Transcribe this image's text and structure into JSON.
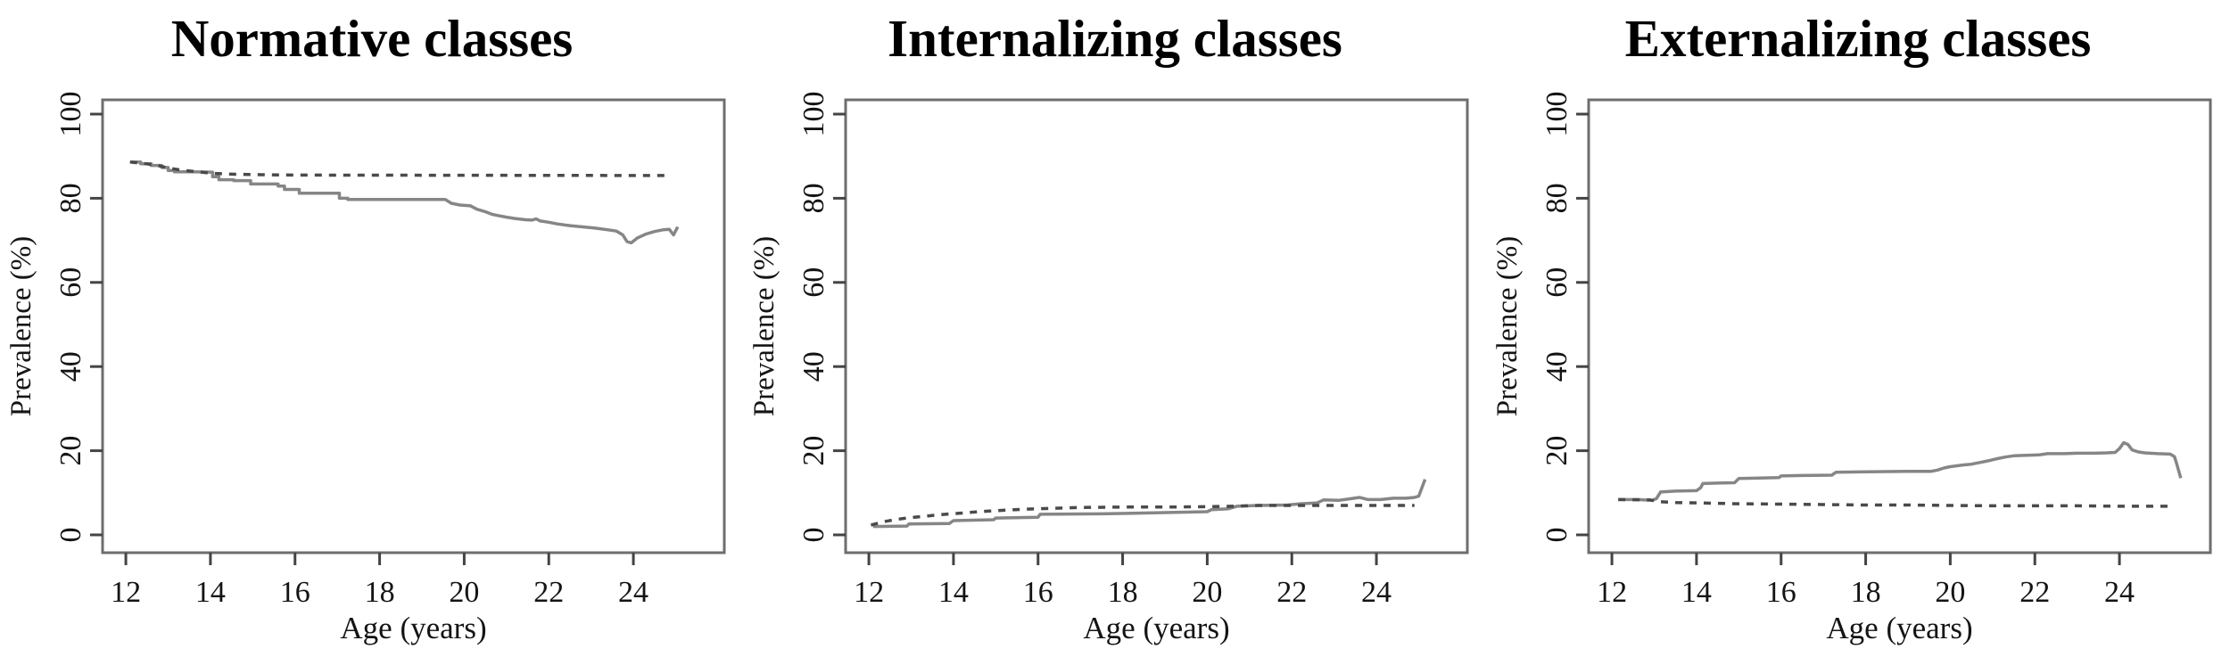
{
  "figure": {
    "background": "#ffffff",
    "axis_color": "#6e6e6e",
    "tick_color": "#444444",
    "text_color": "#141414",
    "title_color": "#000000",
    "line_colors": {
      "solid": "#868686",
      "dashed": "#4a4a4a"
    }
  },
  "chart_data": [
    {
      "type": "line",
      "title": "Normative classes",
      "xlabel": "Age (years)",
      "ylabel": "Prevalence (%)",
      "xlim": [
        11.45,
        26.15
      ],
      "ylim": [
        0,
        100
      ],
      "x_ticks": [
        12,
        14,
        16,
        18,
        20,
        22,
        24
      ],
      "y_ticks": [
        0,
        20,
        40,
        60,
        80,
        100
      ],
      "grid": false,
      "legend": "none",
      "series": [
        {
          "name": "solid-line",
          "style": "solid",
          "points": [
            [
              12.1,
              88.6
            ],
            [
              12.35,
              88.6
            ],
            [
              12.35,
              88.2
            ],
            [
              12.6,
              88.2
            ],
            [
              12.6,
              87.8
            ],
            [
              12.85,
              87.8
            ],
            [
              12.85,
              87.3
            ],
            [
              13.0,
              87.3
            ],
            [
              13.0,
              86.6
            ],
            [
              13.15,
              86.6
            ],
            [
              13.15,
              86.3
            ],
            [
              13.6,
              86.3
            ],
            [
              14.05,
              86.2
            ],
            [
              14.05,
              85.1
            ],
            [
              14.2,
              85.1
            ],
            [
              14.2,
              84.4
            ],
            [
              14.55,
              84.4
            ],
            [
              14.55,
              84.2
            ],
            [
              14.95,
              84.2
            ],
            [
              14.95,
              83.4
            ],
            [
              15.6,
              83.4
            ],
            [
              15.6,
              82.9
            ],
            [
              15.75,
              82.9
            ],
            [
              15.75,
              82.1
            ],
            [
              16.1,
              82.1
            ],
            [
              16.1,
              81.2
            ],
            [
              17.05,
              81.2
            ],
            [
              17.05,
              80.0
            ],
            [
              17.25,
              80.0
            ],
            [
              17.25,
              79.7
            ],
            [
              19.55,
              79.7
            ],
            [
              19.7,
              78.8
            ],
            [
              19.9,
              78.4
            ],
            [
              20.15,
              78.2
            ],
            [
              20.3,
              77.4
            ],
            [
              20.5,
              76.8
            ],
            [
              20.65,
              76.2
            ],
            [
              20.8,
              75.9
            ],
            [
              21.0,
              75.5
            ],
            [
              21.2,
              75.2
            ],
            [
              21.45,
              74.9
            ],
            [
              21.6,
              74.8
            ],
            [
              21.7,
              75.1
            ],
            [
              21.8,
              74.6
            ],
            [
              22.0,
              74.3
            ],
            [
              22.2,
              73.9
            ],
            [
              22.5,
              73.5
            ],
            [
              22.8,
              73.2
            ],
            [
              23.1,
              72.9
            ],
            [
              23.4,
              72.5
            ],
            [
              23.6,
              72.2
            ],
            [
              23.75,
              71.3
            ],
            [
              23.85,
              69.7
            ],
            [
              23.95,
              69.4
            ],
            [
              24.1,
              70.6
            ],
            [
              24.3,
              71.5
            ],
            [
              24.5,
              72.1
            ],
            [
              24.7,
              72.5
            ],
            [
              24.85,
              72.6
            ],
            [
              24.95,
              71.3
            ],
            [
              25.05,
              73.2
            ]
          ]
        },
        {
          "name": "dashed-line",
          "style": "dashed",
          "points": [
            [
              12.1,
              88.6
            ],
            [
              12.4,
              88.3
            ],
            [
              12.7,
              87.9
            ],
            [
              13.0,
              87.2
            ],
            [
              13.3,
              86.7
            ],
            [
              13.7,
              86.3
            ],
            [
              14.1,
              85.9
            ],
            [
              14.6,
              85.7
            ],
            [
              15.2,
              85.6
            ],
            [
              16.0,
              85.5
            ],
            [
              24.85,
              85.4
            ]
          ]
        }
      ]
    },
    {
      "type": "line",
      "title": "Internalizing classes",
      "xlabel": "Age (years)",
      "ylabel": "Prevalence (%)",
      "xlim": [
        11.45,
        26.15
      ],
      "ylim": [
        0,
        100
      ],
      "x_ticks": [
        12,
        14,
        16,
        18,
        20,
        22,
        24
      ],
      "y_ticks": [
        0,
        20,
        40,
        60,
        80,
        100
      ],
      "grid": false,
      "legend": "none",
      "series": [
        {
          "name": "solid-line",
          "style": "solid",
          "points": [
            [
              12.1,
              2.0
            ],
            [
              12.9,
              2.1
            ],
            [
              12.95,
              2.6
            ],
            [
              13.9,
              2.7
            ],
            [
              14.0,
              3.4
            ],
            [
              14.95,
              3.6
            ],
            [
              15.0,
              4.0
            ],
            [
              16.0,
              4.2
            ],
            [
              16.05,
              4.9
            ],
            [
              17.5,
              5.0
            ],
            [
              18.5,
              5.2
            ],
            [
              19.5,
              5.4
            ],
            [
              20.0,
              5.5
            ],
            [
              20.1,
              6.0
            ],
            [
              20.5,
              6.2
            ],
            [
              20.7,
              6.8
            ],
            [
              21.2,
              7.0
            ],
            [
              21.9,
              7.1
            ],
            [
              22.2,
              7.4
            ],
            [
              22.6,
              7.6
            ],
            [
              22.75,
              8.3
            ],
            [
              23.1,
              8.2
            ],
            [
              23.4,
              8.6
            ],
            [
              23.6,
              8.9
            ],
            [
              23.8,
              8.4
            ],
            [
              24.1,
              8.4
            ],
            [
              24.4,
              8.7
            ],
            [
              24.7,
              8.7
            ],
            [
              24.9,
              8.9
            ],
            [
              25.0,
              9.2
            ],
            [
              25.15,
              13.2
            ]
          ]
        },
        {
          "name": "dashed-line",
          "style": "dashed",
          "points": [
            [
              12.05,
              2.3
            ],
            [
              12.3,
              3.0
            ],
            [
              12.6,
              3.6
            ],
            [
              12.9,
              4.0
            ],
            [
              13.3,
              4.4
            ],
            [
              13.7,
              4.8
            ],
            [
              14.1,
              5.1
            ],
            [
              14.6,
              5.5
            ],
            [
              15.1,
              5.8
            ],
            [
              15.7,
              6.1
            ],
            [
              16.3,
              6.3
            ],
            [
              17.0,
              6.5
            ],
            [
              18.0,
              6.6
            ],
            [
              19.0,
              6.6
            ],
            [
              20.0,
              6.7
            ],
            [
              20.6,
              6.8
            ],
            [
              21.2,
              7.0
            ],
            [
              22.0,
              7.0
            ],
            [
              23.0,
              7.0
            ],
            [
              24.0,
              7.0
            ],
            [
              24.9,
              7.0
            ]
          ]
        }
      ]
    },
    {
      "type": "line",
      "title": "Externalizing classes",
      "xlabel": "Age (years)",
      "ylabel": "Prevalence (%)",
      "xlim": [
        11.45,
        26.15
      ],
      "ylim": [
        0,
        100
      ],
      "x_ticks": [
        12,
        14,
        16,
        18,
        20,
        22,
        24
      ],
      "y_ticks": [
        0,
        20,
        40,
        60,
        80,
        100
      ],
      "grid": false,
      "legend": "none",
      "series": [
        {
          "name": "solid-line",
          "style": "solid",
          "points": [
            [
              12.15,
              8.4
            ],
            [
              12.6,
              8.4
            ],
            [
              12.95,
              8.2
            ],
            [
              13.05,
              8.6
            ],
            [
              13.15,
              10.2
            ],
            [
              13.5,
              10.4
            ],
            [
              14.0,
              10.5
            ],
            [
              14.1,
              11.2
            ],
            [
              14.15,
              12.2
            ],
            [
              14.5,
              12.3
            ],
            [
              14.9,
              12.4
            ],
            [
              15.0,
              13.4
            ],
            [
              15.5,
              13.5
            ],
            [
              15.95,
              13.6
            ],
            [
              16.0,
              14.0
            ],
            [
              16.5,
              14.1
            ],
            [
              17.2,
              14.2
            ],
            [
              17.3,
              14.9
            ],
            [
              18.0,
              15.0
            ],
            [
              19.0,
              15.1
            ],
            [
              19.55,
              15.1
            ],
            [
              19.7,
              15.4
            ],
            [
              19.85,
              15.9
            ],
            [
              20.0,
              16.2
            ],
            [
              20.3,
              16.6
            ],
            [
              20.5,
              16.8
            ],
            [
              20.7,
              17.2
            ],
            [
              20.9,
              17.6
            ],
            [
              21.1,
              18.1
            ],
            [
              21.3,
              18.5
            ],
            [
              21.5,
              18.8
            ],
            [
              21.8,
              18.9
            ],
            [
              22.1,
              19.0
            ],
            [
              22.3,
              19.3
            ],
            [
              22.7,
              19.3
            ],
            [
              23.0,
              19.4
            ],
            [
              23.4,
              19.4
            ],
            [
              23.7,
              19.5
            ],
            [
              23.9,
              19.6
            ],
            [
              24.0,
              20.5
            ],
            [
              24.1,
              21.9
            ],
            [
              24.2,
              21.5
            ],
            [
              24.3,
              20.2
            ],
            [
              24.45,
              19.7
            ],
            [
              24.6,
              19.5
            ],
            [
              24.9,
              19.3
            ],
            [
              25.2,
              19.2
            ],
            [
              25.3,
              18.6
            ],
            [
              25.35,
              17.0
            ],
            [
              25.45,
              13.5
            ]
          ]
        },
        {
          "name": "dashed-line",
          "style": "dashed",
          "points": [
            [
              12.15,
              8.4
            ],
            [
              12.9,
              8.3
            ],
            [
              13.1,
              7.9
            ],
            [
              13.5,
              7.7
            ],
            [
              14.0,
              7.6
            ],
            [
              15.0,
              7.4
            ],
            [
              16.0,
              7.3
            ],
            [
              17.0,
              7.2
            ],
            [
              18.0,
              7.1
            ],
            [
              19.0,
              7.1
            ],
            [
              20.0,
              7.0
            ],
            [
              21.0,
              6.9
            ],
            [
              22.0,
              6.9
            ],
            [
              23.0,
              6.9
            ],
            [
              24.0,
              6.8
            ],
            [
              25.3,
              6.8
            ]
          ]
        }
      ]
    }
  ]
}
